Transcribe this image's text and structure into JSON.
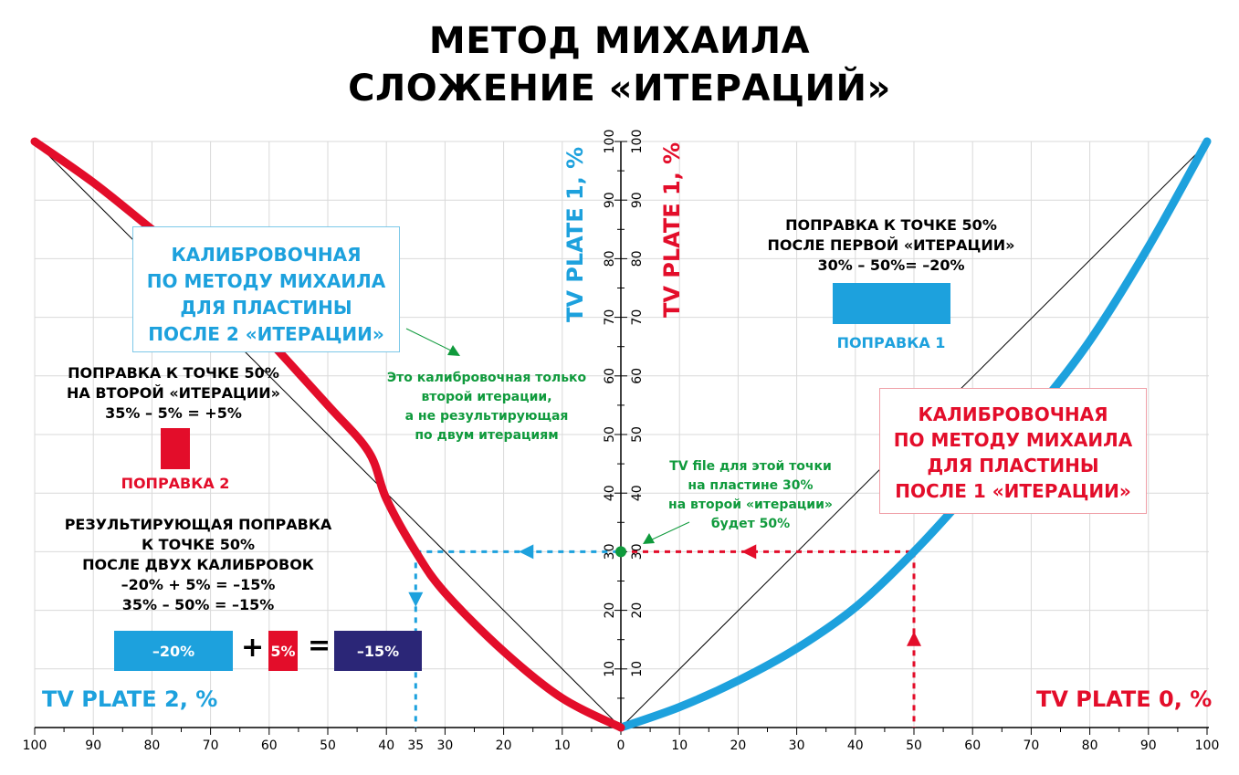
{
  "title": {
    "line1": "МЕТОД МИХАИЛА",
    "line2": "СЛОЖЕНИЕ «ИТЕРАЦИЙ»"
  },
  "colors": {
    "blue": "#1da1dd",
    "red": "#e30d2a",
    "green": "#0f9a3c",
    "navy": "#2b2677",
    "grid": "#d9d9d9"
  },
  "axes": {
    "left_x_label": "TV PLATE 2, %",
    "right_x_label": "TV PLATE 0, %",
    "y_label_blue": "TV PLATE 1, %",
    "y_label_red": "TV PLATE 1, %",
    "bottom_ticks": [
      "100",
      "90",
      "80",
      "70",
      "60",
      "50",
      "40",
      "35",
      "30",
      "20",
      "10",
      "0",
      "10",
      "20",
      "30",
      "40",
      "50",
      "60",
      "70",
      "80",
      "90",
      "100"
    ],
    "y_ticks": [
      "10",
      "20",
      "30",
      "40",
      "50",
      "60",
      "70",
      "80",
      "90",
      "100"
    ]
  },
  "boxes": {
    "blue_calibration": [
      "КАЛИБРОВОЧНАЯ",
      "ПО МЕТОДУ МИХАИЛА",
      "ДЛЯ ПЛАСТИНЫ",
      "ПОСЛЕ 2 «ИТЕРАЦИИ»"
    ],
    "red_calibration": [
      "КАЛИБРОВОЧНАЯ",
      "ПО МЕТОДУ МИХАИЛА",
      "ДЛЯ ПЛАСТИНЫ",
      "ПОСЛЕ 1 «ИТЕРАЦИИ»"
    ]
  },
  "annotations": {
    "correction1_text": [
      "ПОПРАВКА К ТОЧКЕ 50%",
      "ПОСЛЕ ПЕРВОЙ «ИТЕРАЦИИ»",
      "30% – 50%= –20%"
    ],
    "correction1_label": "ПОПРАВКА 1",
    "correction2_text": [
      "ПОПРАВКА К ТОЧКЕ 50%",
      "НА ВТОРОЙ «ИТЕРАЦИИ»",
      "35% – 5% = +5%"
    ],
    "correction2_label": "ПОПРАВКА 2",
    "result_text": [
      "РЕЗУЛЬТИРУЮЩАЯ ПОПРАВКА",
      "К ТОЧКЕ 50%",
      "ПОСЛЕ ДВУХ КАЛИБРОВОК",
      "–20% + 5% = –15%",
      "35% – 50% = –15%"
    ],
    "green_note_1": [
      "Это калибровочная только",
      "второй итерации,",
      "а не результирующая",
      "по двум итерациям"
    ],
    "green_note_2": [
      "TV file для этой точки",
      "на пластине 30%",
      "на второй «итерации»",
      "будет 50%"
    ]
  },
  "equation": {
    "a": "–20%",
    "plus": "+",
    "b": "5%",
    "equals": "=",
    "c": "–15%"
  },
  "chart_data": {
    "type": "line",
    "x_range_left": [
      100,
      0
    ],
    "x_range_right": [
      0,
      100
    ],
    "ylim": [
      0,
      100
    ],
    "grid": true,
    "series": [
      {
        "name": "TV PLATE 0, %",
        "color": "#1da1dd",
        "side": "right",
        "x": [
          0,
          10,
          20,
          30,
          40,
          50,
          60,
          70,
          80,
          90,
          100
        ],
        "y": [
          0,
          3.5,
          8,
          13.5,
          20.5,
          30,
          41,
          53,
          66,
          82,
          100
        ]
      },
      {
        "name": "TV PLATE 2, %",
        "color": "#e30d2a",
        "side": "left",
        "x": [
          0,
          10,
          20,
          30,
          35,
          40,
          43,
          50,
          60,
          70,
          80,
          90,
          100
        ],
        "y": [
          0,
          5,
          13,
          23,
          30,
          39,
          47,
          55,
          66,
          77,
          85,
          93,
          100
        ]
      }
    ],
    "diagonals": true,
    "reference_point": {
      "x": 0,
      "y": 30
    }
  }
}
